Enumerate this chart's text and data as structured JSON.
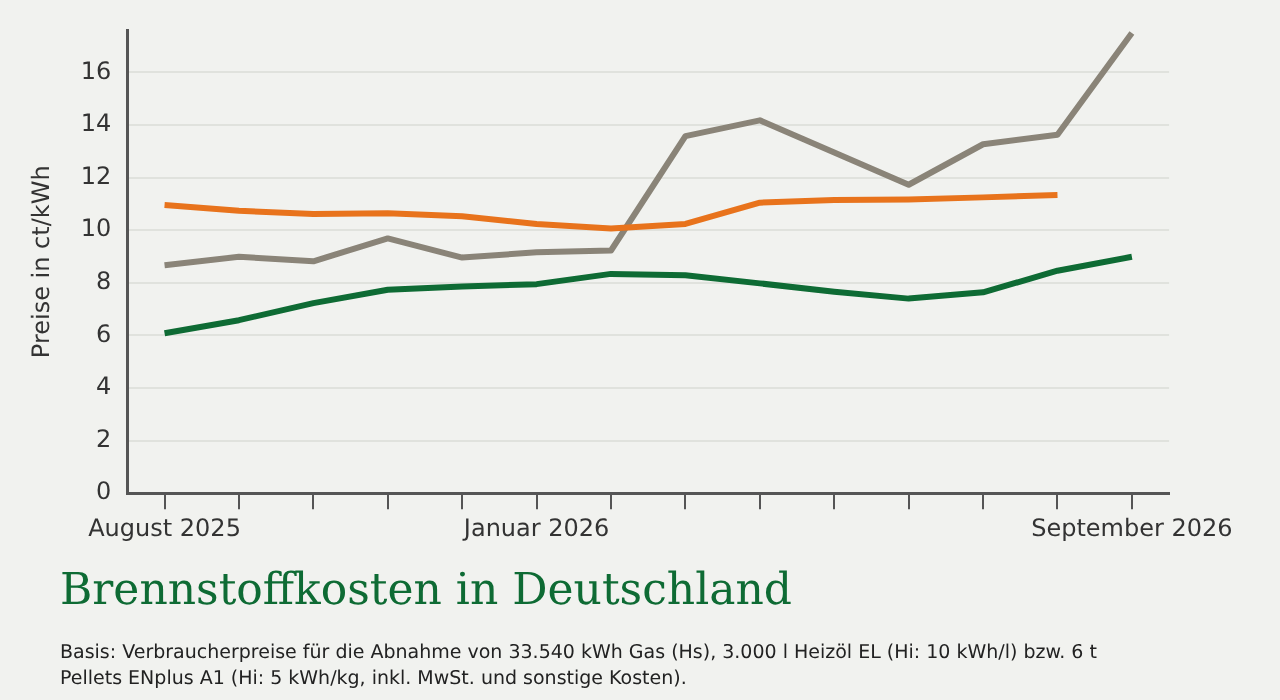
{
  "chart_data": {
    "type": "line",
    "title": "Brennstoffkosten in Deutschland",
    "ylabel": "Preise in ct/kWh",
    "categories": [
      "August 2025",
      null,
      null,
      null,
      null,
      "Januar 2026",
      null,
      null,
      null,
      null,
      null,
      null,
      null,
      "September 2026"
    ],
    "series": [
      {
        "color": "#e8731c",
        "values": [
          10.96,
          10.74,
          10.62,
          10.65,
          10.53,
          10.24,
          10.07,
          10.24,
          11.05,
          11.15,
          11.17,
          11.25,
          11.34,
          null
        ]
      },
      {
        "color": "#8a8478",
        "values": [
          8.67,
          8.99,
          8.82,
          9.69,
          8.96,
          9.16,
          9.23,
          13.58,
          14.18,
          12.96,
          11.73,
          13.27,
          13.63,
          17.5
        ]
      },
      {
        "color": "#0e6b34",
        "values": [
          6.08,
          6.58,
          7.23,
          7.74,
          7.86,
          7.95,
          8.34,
          8.29,
          7.98,
          7.66,
          7.4,
          7.64,
          8.46,
          8.99
        ]
      }
    ],
    "ylim": [
      0,
      17.6
    ],
    "yticks": [
      0,
      2,
      4,
      6,
      8,
      10,
      12,
      14,
      16
    ],
    "grid": "y",
    "annotations": [
      "Basis: Verbraucherpreise für die Abnahme von 33.540 kWh Gas (Hs), 3.000 l Heizöl EL (Hi: 10 kWh/l) bzw. 6 t Pellets ENplus A1 (Hi: 5 kWh/kg, inkl. MwSt. und sonstige Kosten)."
    ]
  }
}
